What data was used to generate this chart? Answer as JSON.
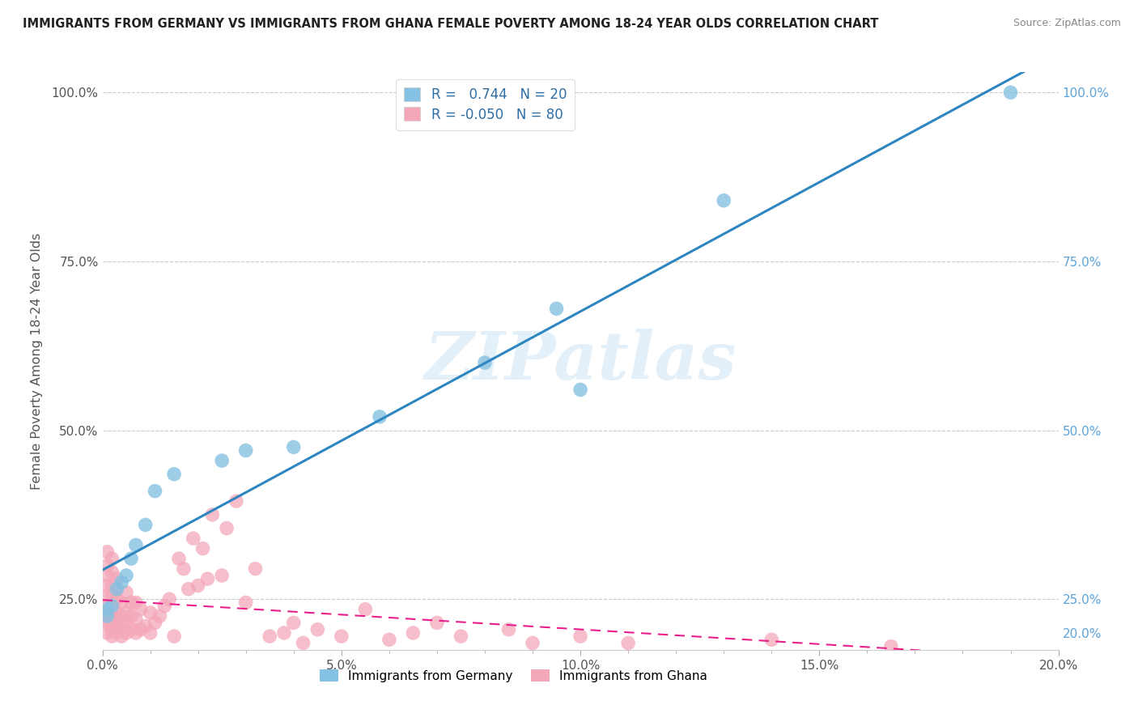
{
  "title": "IMMIGRANTS FROM GERMANY VS IMMIGRANTS FROM GHANA FEMALE POVERTY AMONG 18-24 YEAR OLDS CORRELATION CHART",
  "source": "Source: ZipAtlas.com",
  "ylabel": "Female Poverty Among 18-24 Year Olds",
  "legend_germany": "Immigrants from Germany",
  "legend_ghana": "Immigrants from Ghana",
  "R_germany": 0.744,
  "N_germany": 20,
  "R_ghana": -0.05,
  "N_ghana": 80,
  "germany_color": "#85c1e2",
  "ghana_color": "#f4a7b9",
  "germany_line_color": "#2e86c1",
  "ghana_line_color": "#e91e8c",
  "background_color": "#ffffff",
  "watermark_text": "ZIPatlas",
  "xlim": [
    0.0,
    0.2
  ],
  "ylim": [
    0.175,
    1.03
  ],
  "xticks": [
    0.0,
    0.05,
    0.1,
    0.15,
    0.2
  ],
  "yticks_left": [
    0.25,
    0.5,
    0.75,
    1.0
  ],
  "yticks_right": [
    0.2,
    0.25,
    0.5,
    0.75,
    1.0
  ],
  "germany_x": [
    0.001,
    0.001,
    0.002,
    0.003,
    0.004,
    0.005,
    0.006,
    0.007,
    0.009,
    0.011,
    0.015,
    0.025,
    0.03,
    0.04,
    0.058,
    0.08,
    0.095,
    0.1,
    0.13,
    0.19
  ],
  "germany_y": [
    0.225,
    0.235,
    0.24,
    0.265,
    0.275,
    0.285,
    0.31,
    0.33,
    0.36,
    0.41,
    0.435,
    0.455,
    0.47,
    0.475,
    0.52,
    0.6,
    0.68,
    0.56,
    0.84,
    1.0
  ],
  "ghana_x": [
    0.001,
    0.001,
    0.001,
    0.001,
    0.001,
    0.001,
    0.001,
    0.001,
    0.001,
    0.001,
    0.002,
    0.002,
    0.002,
    0.002,
    0.002,
    0.002,
    0.002,
    0.002,
    0.002,
    0.003,
    0.003,
    0.003,
    0.003,
    0.003,
    0.003,
    0.003,
    0.004,
    0.004,
    0.004,
    0.004,
    0.005,
    0.005,
    0.005,
    0.005,
    0.006,
    0.006,
    0.006,
    0.007,
    0.007,
    0.007,
    0.008,
    0.008,
    0.009,
    0.01,
    0.01,
    0.011,
    0.012,
    0.013,
    0.014,
    0.015,
    0.016,
    0.017,
    0.018,
    0.019,
    0.02,
    0.021,
    0.022,
    0.023,
    0.025,
    0.026,
    0.028,
    0.03,
    0.032,
    0.035,
    0.038,
    0.04,
    0.042,
    0.045,
    0.05,
    0.055,
    0.06,
    0.065,
    0.07,
    0.075,
    0.085,
    0.09,
    0.1,
    0.11,
    0.14,
    0.165
  ],
  "ghana_y": [
    0.2,
    0.215,
    0.22,
    0.23,
    0.24,
    0.255,
    0.27,
    0.285,
    0.3,
    0.32,
    0.195,
    0.205,
    0.215,
    0.225,
    0.24,
    0.255,
    0.27,
    0.29,
    0.31,
    0.2,
    0.21,
    0.22,
    0.23,
    0.25,
    0.265,
    0.28,
    0.195,
    0.21,
    0.225,
    0.245,
    0.2,
    0.215,
    0.23,
    0.26,
    0.205,
    0.225,
    0.245,
    0.2,
    0.22,
    0.245,
    0.205,
    0.235,
    0.21,
    0.2,
    0.23,
    0.215,
    0.225,
    0.24,
    0.25,
    0.195,
    0.31,
    0.295,
    0.265,
    0.34,
    0.27,
    0.325,
    0.28,
    0.375,
    0.285,
    0.355,
    0.395,
    0.245,
    0.295,
    0.195,
    0.2,
    0.215,
    0.185,
    0.205,
    0.195,
    0.235,
    0.19,
    0.2,
    0.215,
    0.195,
    0.205,
    0.185,
    0.195,
    0.185,
    0.19,
    0.18
  ]
}
